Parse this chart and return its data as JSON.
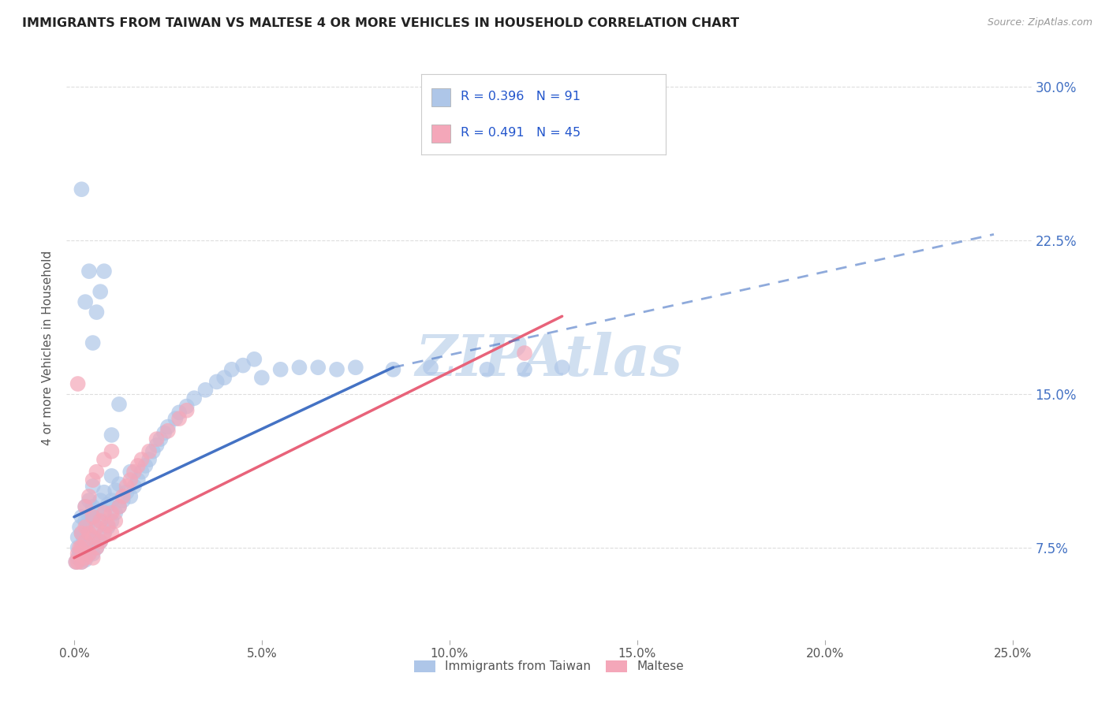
{
  "title": "IMMIGRANTS FROM TAIWAN VS MALTESE 4 OR MORE VEHICLES IN HOUSEHOLD CORRELATION CHART",
  "source": "Source: ZipAtlas.com",
  "ylabel": "4 or more Vehicles in Household",
  "legend1_label": "Immigrants from Taiwan",
  "legend2_label": "Maltese",
  "r1": "0.396",
  "n1": "91",
  "r2": "0.491",
  "n2": "45",
  "ytick_labels": [
    "7.5%",
    "15.0%",
    "22.5%",
    "30.0%"
  ],
  "ytick_values": [
    0.075,
    0.15,
    0.225,
    0.3
  ],
  "xtick_labels": [
    "0.0%",
    "5.0%",
    "10.0%",
    "15.0%",
    "20.0%",
    "25.0%"
  ],
  "xtick_values": [
    0.0,
    0.05,
    0.1,
    0.15,
    0.2,
    0.25
  ],
  "color_taiwan": "#aec6e8",
  "color_maltese": "#f4a7b9",
  "color_trend_taiwan": "#4472c4",
  "color_trend_maltese": "#e8637a",
  "watermark_color": "#c8d8e8",
  "xlim": [
    -0.002,
    0.255
  ],
  "ylim": [
    0.03,
    0.315
  ],
  "taiwan_x": [
    0.0005,
    0.001,
    0.001,
    0.001,
    0.0015,
    0.0015,
    0.002,
    0.002,
    0.002,
    0.002,
    0.0025,
    0.0025,
    0.003,
    0.003,
    0.003,
    0.003,
    0.003,
    0.0035,
    0.0035,
    0.004,
    0.004,
    0.004,
    0.004,
    0.0045,
    0.005,
    0.005,
    0.005,
    0.005,
    0.005,
    0.006,
    0.006,
    0.006,
    0.007,
    0.007,
    0.007,
    0.008,
    0.008,
    0.008,
    0.009,
    0.009,
    0.01,
    0.01,
    0.01,
    0.011,
    0.011,
    0.012,
    0.012,
    0.013,
    0.014,
    0.015,
    0.015,
    0.016,
    0.017,
    0.018,
    0.019,
    0.02,
    0.021,
    0.022,
    0.023,
    0.024,
    0.025,
    0.027,
    0.028,
    0.03,
    0.032,
    0.035,
    0.038,
    0.04,
    0.042,
    0.045,
    0.048,
    0.05,
    0.055,
    0.06,
    0.065,
    0.07,
    0.075,
    0.085,
    0.095,
    0.11,
    0.12,
    0.13,
    0.002,
    0.003,
    0.004,
    0.005,
    0.006,
    0.007,
    0.008,
    0.01,
    0.012
  ],
  "taiwan_y": [
    0.068,
    0.07,
    0.075,
    0.08,
    0.072,
    0.085,
    0.068,
    0.075,
    0.082,
    0.09,
    0.072,
    0.08,
    0.069,
    0.075,
    0.082,
    0.088,
    0.095,
    0.073,
    0.086,
    0.072,
    0.08,
    0.09,
    0.098,
    0.078,
    0.072,
    0.08,
    0.09,
    0.095,
    0.105,
    0.075,
    0.085,
    0.093,
    0.078,
    0.088,
    0.098,
    0.082,
    0.092,
    0.102,
    0.085,
    0.096,
    0.088,
    0.098,
    0.11,
    0.092,
    0.103,
    0.095,
    0.106,
    0.098,
    0.102,
    0.1,
    0.112,
    0.105,
    0.108,
    0.112,
    0.115,
    0.118,
    0.122,
    0.125,
    0.128,
    0.131,
    0.134,
    0.138,
    0.141,
    0.144,
    0.148,
    0.152,
    0.156,
    0.158,
    0.162,
    0.164,
    0.167,
    0.158,
    0.162,
    0.163,
    0.163,
    0.162,
    0.163,
    0.162,
    0.163,
    0.162,
    0.162,
    0.163,
    0.25,
    0.195,
    0.21,
    0.175,
    0.19,
    0.2,
    0.21,
    0.13,
    0.145
  ],
  "maltese_x": [
    0.0005,
    0.001,
    0.001,
    0.0015,
    0.002,
    0.002,
    0.002,
    0.003,
    0.003,
    0.003,
    0.004,
    0.004,
    0.005,
    0.005,
    0.005,
    0.006,
    0.006,
    0.007,
    0.007,
    0.008,
    0.008,
    0.009,
    0.01,
    0.01,
    0.011,
    0.012,
    0.013,
    0.014,
    0.015,
    0.016,
    0.017,
    0.018,
    0.02,
    0.022,
    0.025,
    0.028,
    0.03,
    0.003,
    0.004,
    0.005,
    0.006,
    0.008,
    0.01,
    0.12,
    0.001
  ],
  "maltese_y": [
    0.068,
    0.072,
    0.068,
    0.075,
    0.068,
    0.075,
    0.082,
    0.07,
    0.078,
    0.085,
    0.072,
    0.082,
    0.07,
    0.08,
    0.09,
    0.075,
    0.085,
    0.078,
    0.088,
    0.082,
    0.092,
    0.086,
    0.082,
    0.092,
    0.088,
    0.095,
    0.1,
    0.105,
    0.108,
    0.112,
    0.115,
    0.118,
    0.122,
    0.128,
    0.132,
    0.138,
    0.142,
    0.095,
    0.1,
    0.108,
    0.112,
    0.118,
    0.122,
    0.17,
    0.155
  ],
  "trend_taiwan_x0": 0.0,
  "trend_taiwan_y0": 0.09,
  "trend_taiwan_x1": 0.085,
  "trend_taiwan_y1": 0.163,
  "trend_maltese_x0": 0.0,
  "trend_maltese_y0": 0.07,
  "trend_maltese_x1": 0.13,
  "trend_maltese_y1": 0.188,
  "trend_ext_x0": 0.085,
  "trend_ext_y0": 0.163,
  "trend_ext_x1": 0.245,
  "trend_ext_y1": 0.228
}
